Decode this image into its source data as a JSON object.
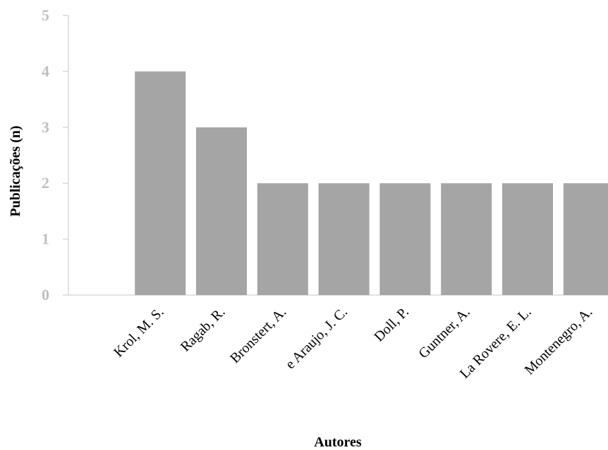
{
  "chart_data": {
    "type": "bar",
    "categories": [
      "Krol, M. S.",
      "Ragab, R.",
      "Bronstert, A.",
      "e Araujo, J. C.",
      "Doll, P.",
      "Guntner, A.",
      "La Rovere, E. L.",
      "Montenegro, A."
    ],
    "values": [
      4,
      3,
      2,
      2,
      2,
      2,
      2,
      2
    ],
    "title": "",
    "xlabel": "Autores",
    "ylabel": "Publicações (n)",
    "ylim": [
      0,
      5
    ],
    "yticks": [
      0,
      1,
      2,
      3,
      4,
      5
    ],
    "grid": false,
    "legend": "none",
    "bar_color": "#a5a5a5",
    "axis_color": "#d9d9d9",
    "tick_label_color": "#bfbfbf"
  }
}
